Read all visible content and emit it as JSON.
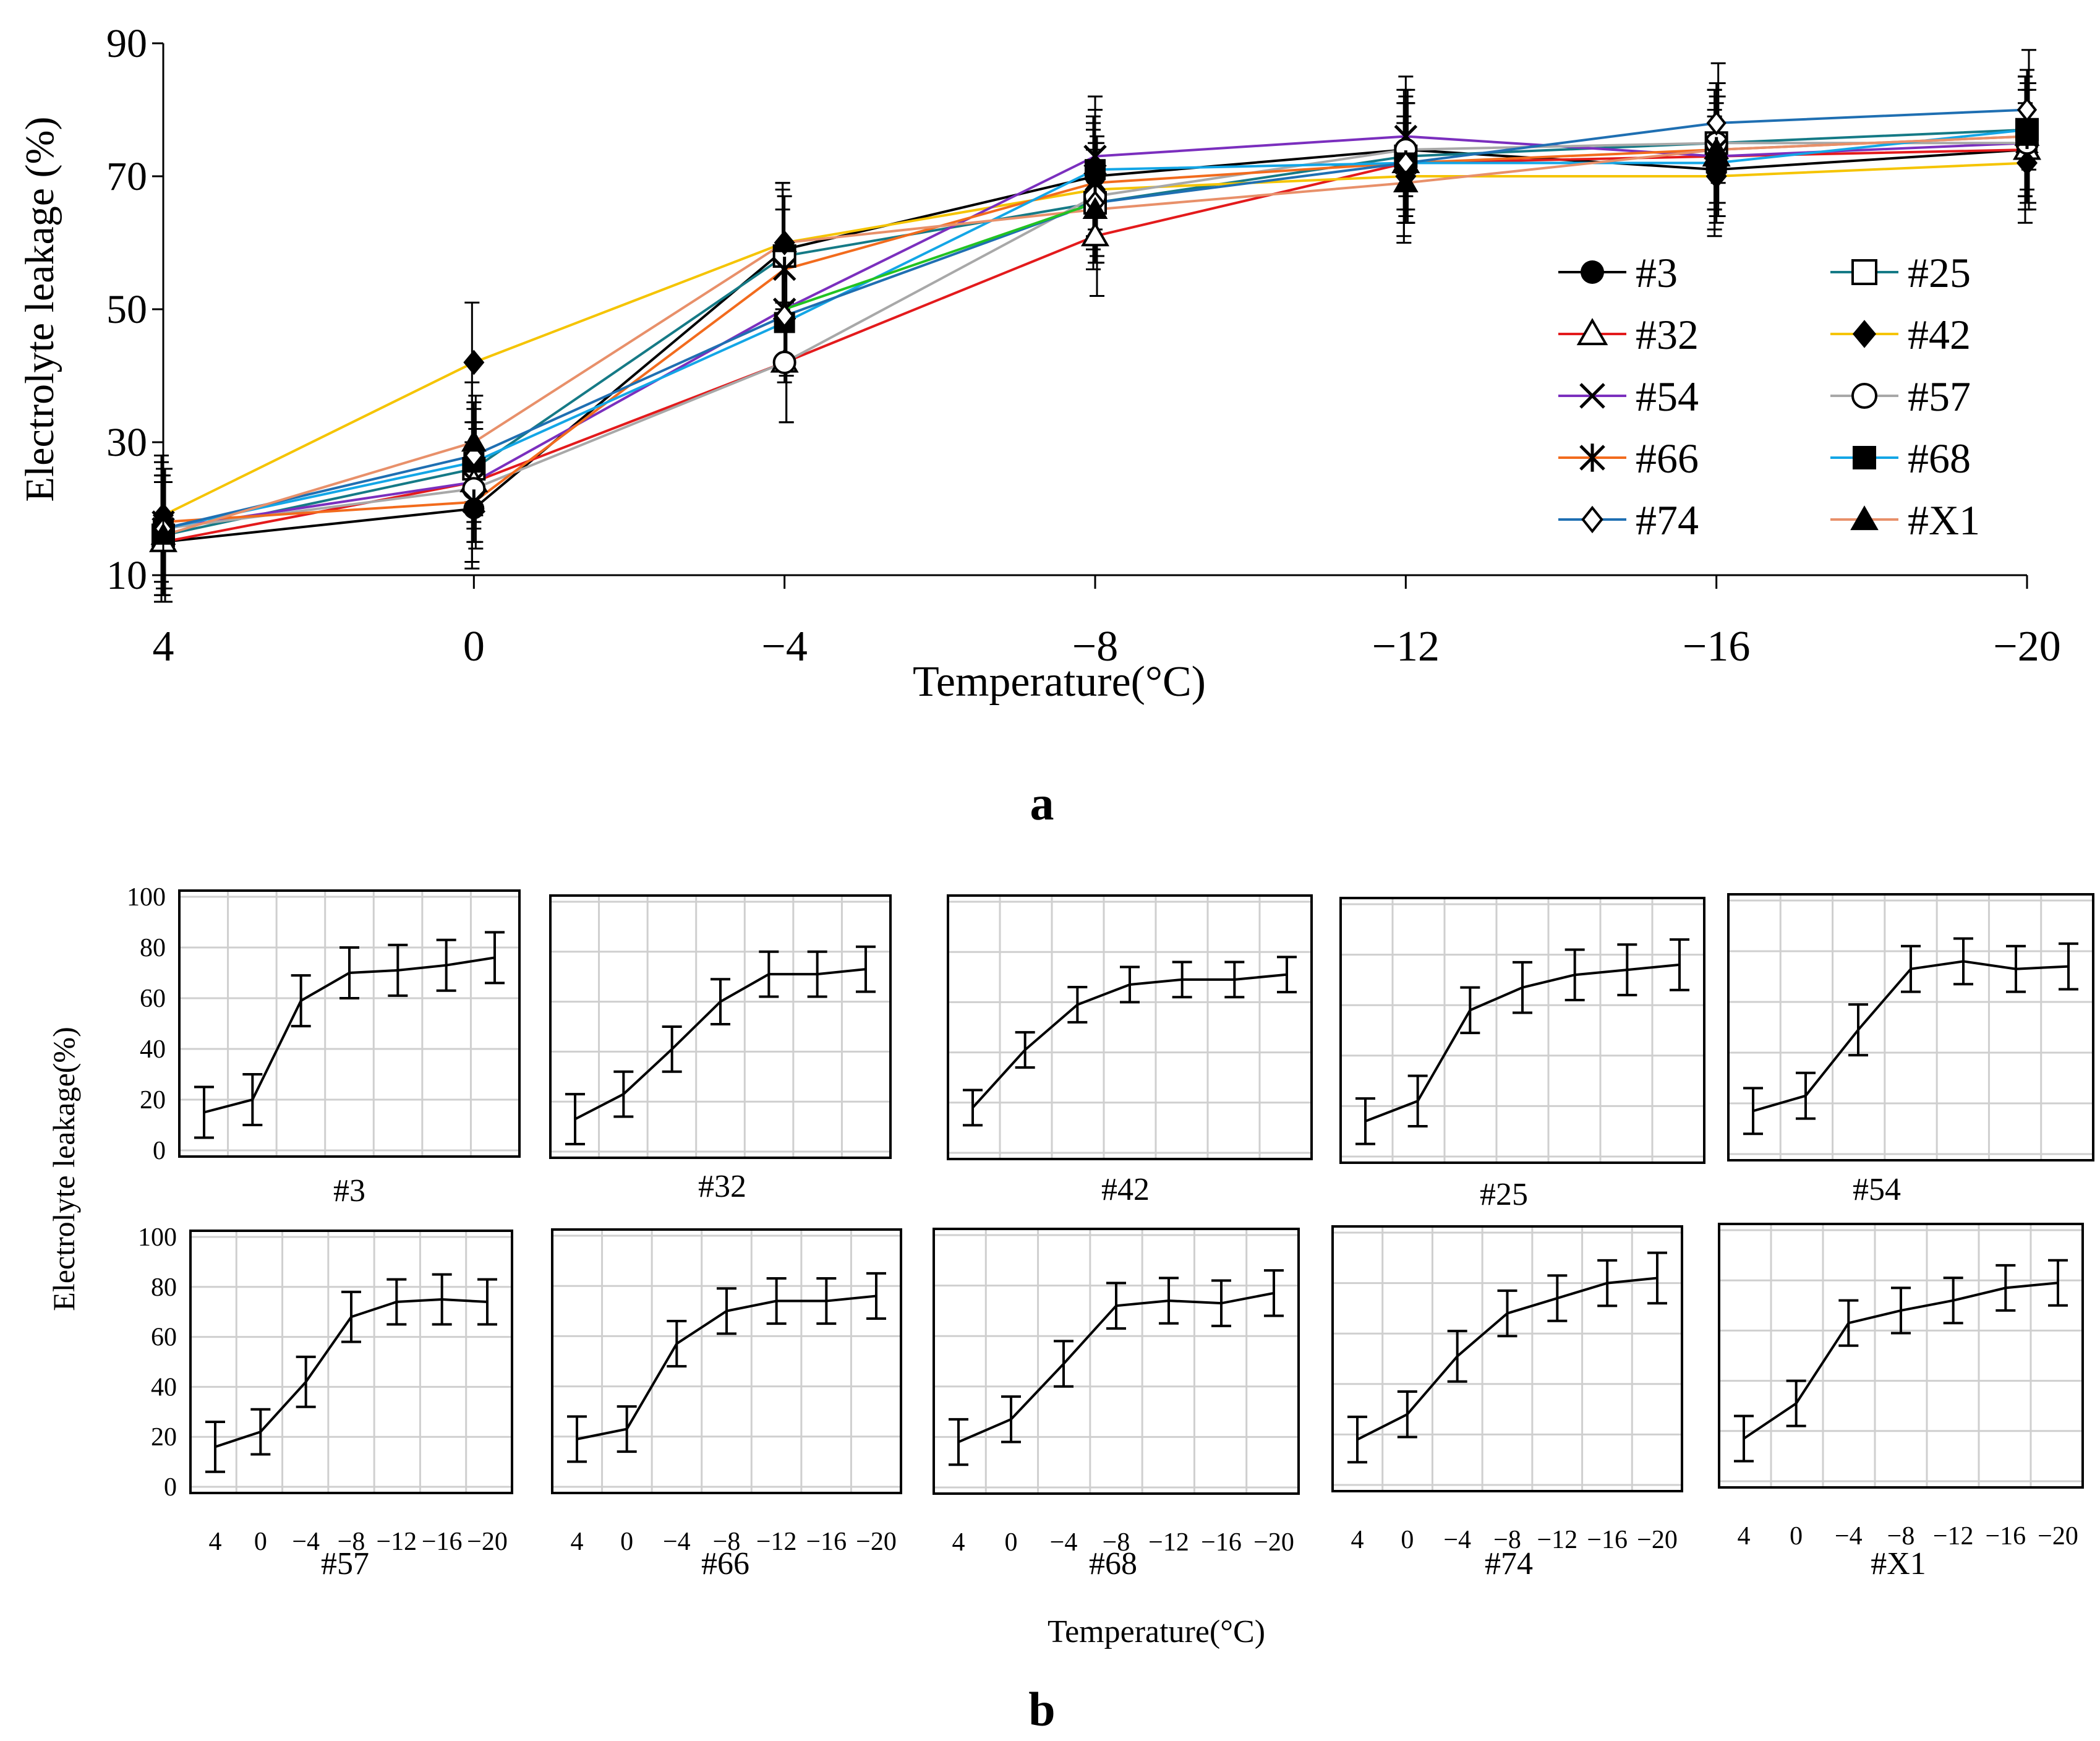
{
  "colors": {
    "#3": "#000000",
    "#32": "#e31a1c",
    "#54": "#7b2fbe",
    "#66": "#f26b1d",
    "#74": "#1f6fb2",
    "#25": "#157a86",
    "#42": "#f5c400",
    "#57": "#a8a8a8",
    "#68": "#13a6e6",
    "#X1": "#e8906a",
    "green": "#22c322"
  },
  "chart_data": [
    {
      "panel": "a",
      "type": "line",
      "panel_label": "a",
      "xlabel": "Temperature(°C)",
      "ylabel": "Electrolyte leakage (%)",
      "categories": [
        "4",
        "0",
        "−4",
        "−8",
        "−12",
        "−16",
        "−20"
      ],
      "yticks": [
        "10",
        "30",
        "50",
        "70",
        "90"
      ],
      "ylim": [
        10,
        90
      ],
      "legend_position": "bottom-right",
      "series": [
        {
          "name": "#3",
          "marker": "filled-circle",
          "values": [
            15,
            20,
            59,
            70,
            74,
            71,
            74
          ]
        },
        {
          "name": "#25",
          "marker": "open-square",
          "values": [
            16,
            26,
            58,
            66,
            73,
            75,
            77
          ]
        },
        {
          "name": "#32",
          "marker": "open-triangle",
          "values": [
            15,
            24,
            42,
            61,
            72,
            73,
            74
          ]
        },
        {
          "name": "#42",
          "marker": "filled-diamond",
          "values": [
            19,
            42,
            60,
            68,
            70,
            70,
            72
          ]
        },
        {
          "name": "#54",
          "marker": "x",
          "values": [
            17,
            24,
            50,
            73,
            76,
            73,
            75
          ]
        },
        {
          "name": "#57",
          "marker": "open-circle",
          "values": [
            17,
            23,
            42,
            67,
            74,
            75,
            75
          ]
        },
        {
          "name": "#66",
          "marker": "asterisk",
          "values": [
            18,
            21,
            56,
            69,
            72,
            74,
            76
          ]
        },
        {
          "name": "#68",
          "marker": "filled-square",
          "values": [
            17,
            27,
            48,
            71,
            72,
            72,
            77
          ]
        },
        {
          "name": "#74",
          "marker": "open-diamond",
          "values": [
            17,
            28,
            49,
            66,
            72,
            78,
            80
          ]
        },
        {
          "name": "#X1",
          "marker": "filled-triangle",
          "values": [
            16,
            30,
            60,
            65,
            69,
            74,
            76
          ]
        }
      ]
    },
    {
      "panel": "b",
      "type": "line",
      "panel_label": "b",
      "xlabel": "Temperature(°C)",
      "ylabel": "Electrolyte leakage(%)",
      "categories": [
        "4",
        "0",
        "−4",
        "−8",
        "−12",
        "−16",
        "−20"
      ],
      "yticks": [
        "0",
        "20",
        "40",
        "60",
        "80",
        "100"
      ],
      "ylim": [
        0,
        100
      ],
      "subplots": [
        {
          "name": "#3",
          "values": [
            15,
            20,
            59,
            70,
            71,
            73,
            76
          ],
          "errors": [
            10,
            10,
            10,
            10,
            10,
            10,
            10
          ]
        },
        {
          "name": "#32",
          "values": [
            13,
            23,
            41,
            60,
            71,
            71,
            73
          ],
          "errors": [
            10,
            9,
            9,
            9,
            9,
            9,
            9
          ]
        },
        {
          "name": "#42",
          "values": [
            18,
            41,
            59,
            67,
            69,
            69,
            71
          ],
          "errors": [
            7,
            7,
            7,
            7,
            7,
            7,
            7
          ]
        },
        {
          "name": "#25",
          "values": [
            14,
            22,
            58,
            67,
            72,
            74,
            76
          ],
          "errors": [
            9,
            10,
            9,
            10,
            10,
            10,
            10
          ]
        },
        {
          "name": "#54",
          "values": [
            17,
            23,
            49,
            73,
            76,
            73,
            74
          ],
          "errors": [
            9,
            9,
            10,
            9,
            9,
            9,
            9
          ]
        },
        {
          "name": "#57",
          "values": [
            16,
            22,
            42,
            68,
            74,
            75,
            74
          ],
          "errors": [
            10,
            9,
            10,
            10,
            9,
            10,
            9
          ]
        },
        {
          "name": "#66",
          "values": [
            19,
            23,
            57,
            70,
            74,
            74,
            76
          ],
          "errors": [
            9,
            9,
            9,
            9,
            9,
            9,
            9
          ]
        },
        {
          "name": "#68",
          "values": [
            18,
            27,
            49,
            72,
            74,
            73,
            77
          ],
          "errors": [
            9,
            9,
            9,
            9,
            9,
            9,
            9
          ]
        },
        {
          "name": "#74",
          "values": [
            18,
            28,
            51,
            68,
            74,
            80,
            82
          ],
          "errors": [
            9,
            9,
            10,
            9,
            9,
            9,
            10
          ]
        },
        {
          "name": "#X1",
          "values": [
            17,
            31,
            63,
            68,
            72,
            77,
            79
          ],
          "errors": [
            9,
            9,
            9,
            9,
            9,
            9,
            9
          ]
        }
      ]
    }
  ]
}
